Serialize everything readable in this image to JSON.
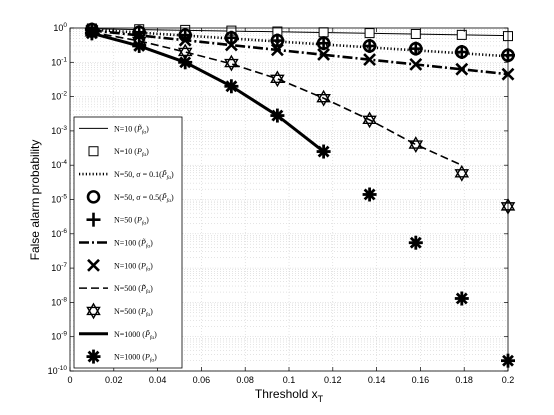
{
  "chart_data": {
    "type": "line",
    "xlabel": "Threshold x",
    "xlabel_sub": "T",
    "ylabel": "False alarm probability",
    "xlim": [
      0,
      0.2
    ],
    "ylim_log10": [
      -10,
      0
    ],
    "yscale": "log",
    "grid": true,
    "legend_position": "left",
    "xticks": [
      "0",
      "0.02",
      "0.04",
      "0.06",
      "0.08",
      "0.1",
      "0.12",
      "0.14",
      "0.16",
      "0.18",
      "0.2"
    ],
    "series": [
      {
        "name": "N=10 (P̃fa)",
        "label_main": "N=10 (",
        "label_sym": "P̃",
        "label_sub": "fa",
        "style": "solid-thin",
        "marker": "none",
        "x": [
          0.01,
          0.2
        ],
        "y": [
          0.95,
          0.6
        ]
      },
      {
        "name": "N=10 (Pfa)",
        "label_main": "N=10 (",
        "label_sym": "P",
        "label_sub": "fa",
        "style": "none",
        "marker": "square",
        "x": [
          0.01,
          0.0316,
          0.0526,
          0.0737,
          0.0947,
          0.1158,
          0.1368,
          0.1579,
          0.1789,
          0.2
        ],
        "y": [
          0.97,
          0.92,
          0.88,
          0.84,
          0.79,
          0.75,
          0.71,
          0.67,
          0.63,
          0.58
        ]
      },
      {
        "name": "N=50, σ = 0.1(P̃fa)",
        "label_main": "N=50, σ = 0.1(",
        "label_sym": "P̃",
        "label_sub": "fa",
        "style": "dotted",
        "marker": "none",
        "x": [
          0.01,
          0.2
        ],
        "y": [
          0.9,
          0.15
        ]
      },
      {
        "name": "N=50, σ = 0.5(P̃fa)",
        "label_main": "N=50, σ = 0.5(",
        "label_sym": "P̃",
        "label_sub": "fa",
        "style": "none",
        "marker": "circle",
        "x": [
          0.01,
          0.0316,
          0.0526,
          0.0737,
          0.0947,
          0.1158,
          0.1368,
          0.1579,
          0.1789,
          0.2
        ],
        "y": [
          0.9,
          0.75,
          0.62,
          0.52,
          0.43,
          0.36,
          0.3,
          0.25,
          0.2,
          0.16
        ]
      },
      {
        "name": "N=50 (Pfa)",
        "label_main": "N=50 (",
        "label_sym": "P",
        "label_sub": "fa",
        "style": "none",
        "marker": "plus",
        "x": [
          0.01,
          0.0316,
          0.0526,
          0.0737,
          0.0947,
          0.1158,
          0.1368,
          0.1579,
          0.1789,
          0.2
        ],
        "y": [
          0.9,
          0.75,
          0.62,
          0.52,
          0.43,
          0.36,
          0.3,
          0.25,
          0.2,
          0.16
        ]
      },
      {
        "name": "N=100 (P̃fa)",
        "label_main": "N=100 (",
        "label_sym": "P̃",
        "label_sub": "fa",
        "style": "dashdot",
        "marker": "none",
        "x": [
          0.01,
          0.2
        ],
        "y": [
          0.85,
          0.045
        ]
      },
      {
        "name": "N=100 (Pfa)",
        "label_main": "N=100 (",
        "label_sym": "P",
        "label_sub": "fa",
        "style": "none",
        "marker": "x",
        "x": [
          0.01,
          0.0316,
          0.0526,
          0.0737,
          0.0947,
          0.1158,
          0.1368,
          0.1579,
          0.1789,
          0.2
        ],
        "y": [
          0.85,
          0.61,
          0.44,
          0.32,
          0.23,
          0.17,
          0.12,
          0.087,
          0.063,
          0.045
        ]
      },
      {
        "name": "N=500 (P̃fa)",
        "label_main": "N=500 (",
        "label_sym": "P̃",
        "label_sub": "fa",
        "style": "dashed",
        "marker": "none",
        "x": [
          0.01,
          0.0316,
          0.0526,
          0.0737,
          0.0947,
          0.1158,
          0.1368,
          0.1579,
          0.1789
        ],
        "y": [
          0.75,
          0.42,
          0.2,
          0.09,
          0.033,
          0.009,
          0.0021,
          0.0004,
          0.0001
        ]
      },
      {
        "name": "N=500 (Pfa)",
        "label_main": "N=500 (",
        "label_sym": "P",
        "label_sub": "fa",
        "style": "none",
        "marker": "star6",
        "x": [
          0.01,
          0.0316,
          0.0526,
          0.0737,
          0.0947,
          0.1158,
          0.1368,
          0.1579,
          0.1789,
          0.2
        ],
        "y": [
          0.75,
          0.42,
          0.2,
          0.095,
          0.033,
          0.009,
          0.0021,
          0.0004,
          5.8e-05,
          6.3e-06
        ]
      },
      {
        "name": "N=1000 (P̃fa)",
        "label_main": "N=1000 (",
        "label_sym": "P̃",
        "label_sub": "fa",
        "style": "solid-thick",
        "marker": "none",
        "x": [
          0.01,
          0.0316,
          0.0526,
          0.0737,
          0.0947,
          0.1158
        ],
        "y": [
          0.7,
          0.3,
          0.1,
          0.02,
          0.0028,
          0.00025
        ]
      },
      {
        "name": "N=1000 (Pfa)",
        "label_main": "N=1000 (",
        "label_sym": "P",
        "label_sub": "fa",
        "style": "none",
        "marker": "asterisk",
        "x": [
          0.01,
          0.0316,
          0.0526,
          0.0737,
          0.0947,
          0.1158,
          0.1368,
          0.1579,
          0.1789,
          0.2
        ],
        "y": [
          0.7,
          0.3,
          0.1,
          0.02,
          0.0028,
          0.00025,
          1.4e-05,
          5.5e-07,
          1.3e-08,
          2e-10
        ]
      }
    ]
  }
}
